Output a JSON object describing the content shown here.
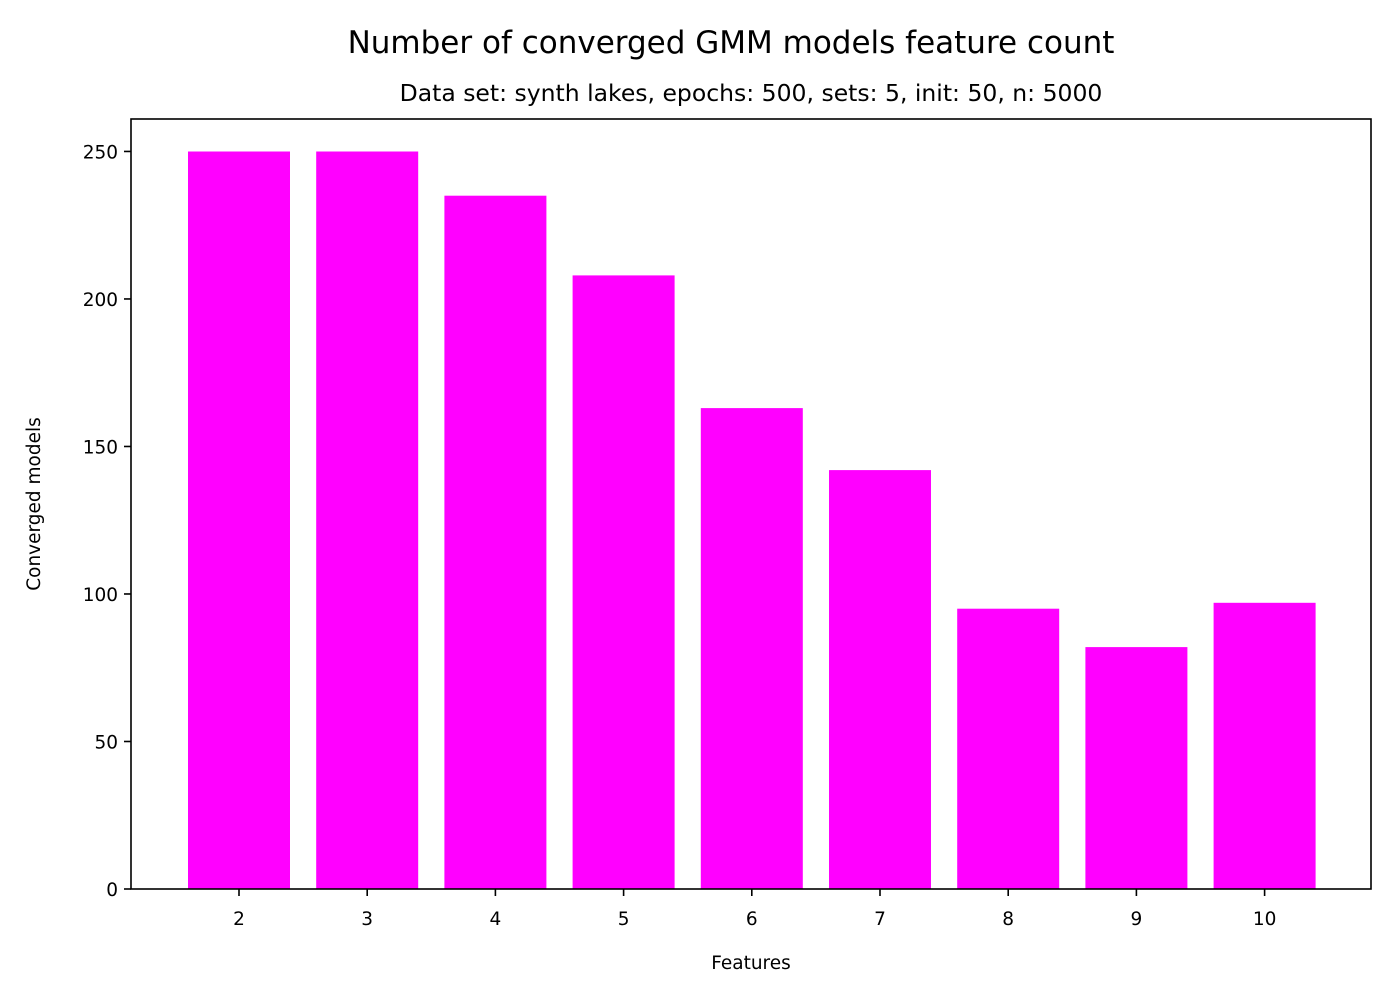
{
  "chart_data": {
    "type": "bar",
    "title": "Number of converged GMM models feature count",
    "subtitle": "Data set:  synth lakes, epochs: 500, sets: 5, init: 50, n: 5000",
    "xlabel": "Features",
    "ylabel": "Converged models",
    "categories": [
      "2",
      "3",
      "4",
      "5",
      "6",
      "7",
      "8",
      "9",
      "10"
    ],
    "values": [
      250,
      250,
      235,
      208,
      163,
      142,
      95,
      82,
      97
    ],
    "ylim": [
      0,
      261
    ],
    "yticks": [
      0,
      50,
      100,
      150,
      200,
      250
    ],
    "bar_color": "#ff00ff",
    "grid": false,
    "legend": "none"
  }
}
